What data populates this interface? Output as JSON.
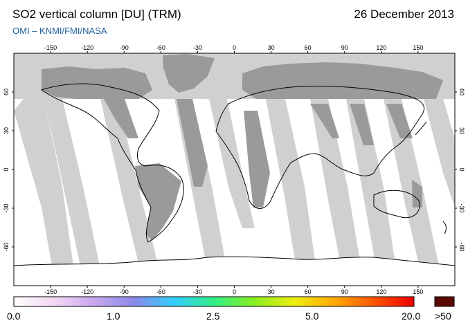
{
  "header": {
    "title": "SO2 vertical column [DU] (TRM)",
    "date": "26 December 2013",
    "credit": "OMI  –  KNMI/FMI/NASA"
  },
  "map": {
    "lon_ticks": [
      "-150",
      "-120",
      "-90",
      "-60",
      "-30",
      "0",
      "30",
      "60",
      "90",
      "120",
      "150"
    ],
    "lat_ticks": [
      "60",
      "30",
      "0",
      "-30",
      "-60"
    ],
    "colors": {
      "no_data": "#d0d0d0",
      "land_no_data": "#9a9a9a",
      "background": "#ffffff",
      "coastline": "#000000"
    }
  },
  "colorbar": {
    "labels": [
      "0.0",
      "1.0",
      "2.5",
      "5.0",
      "20.0"
    ],
    "overflow_label": ">50",
    "overflow_color": "#5a0a05",
    "gradient": [
      "#ffffff",
      "#f4d8f4",
      "#c8a8ee",
      "#8a8ae8",
      "#33ccff",
      "#33ee88",
      "#88ee22",
      "#eeee11",
      "#ffaa00",
      "#ff5500",
      "#ee0000"
    ]
  }
}
